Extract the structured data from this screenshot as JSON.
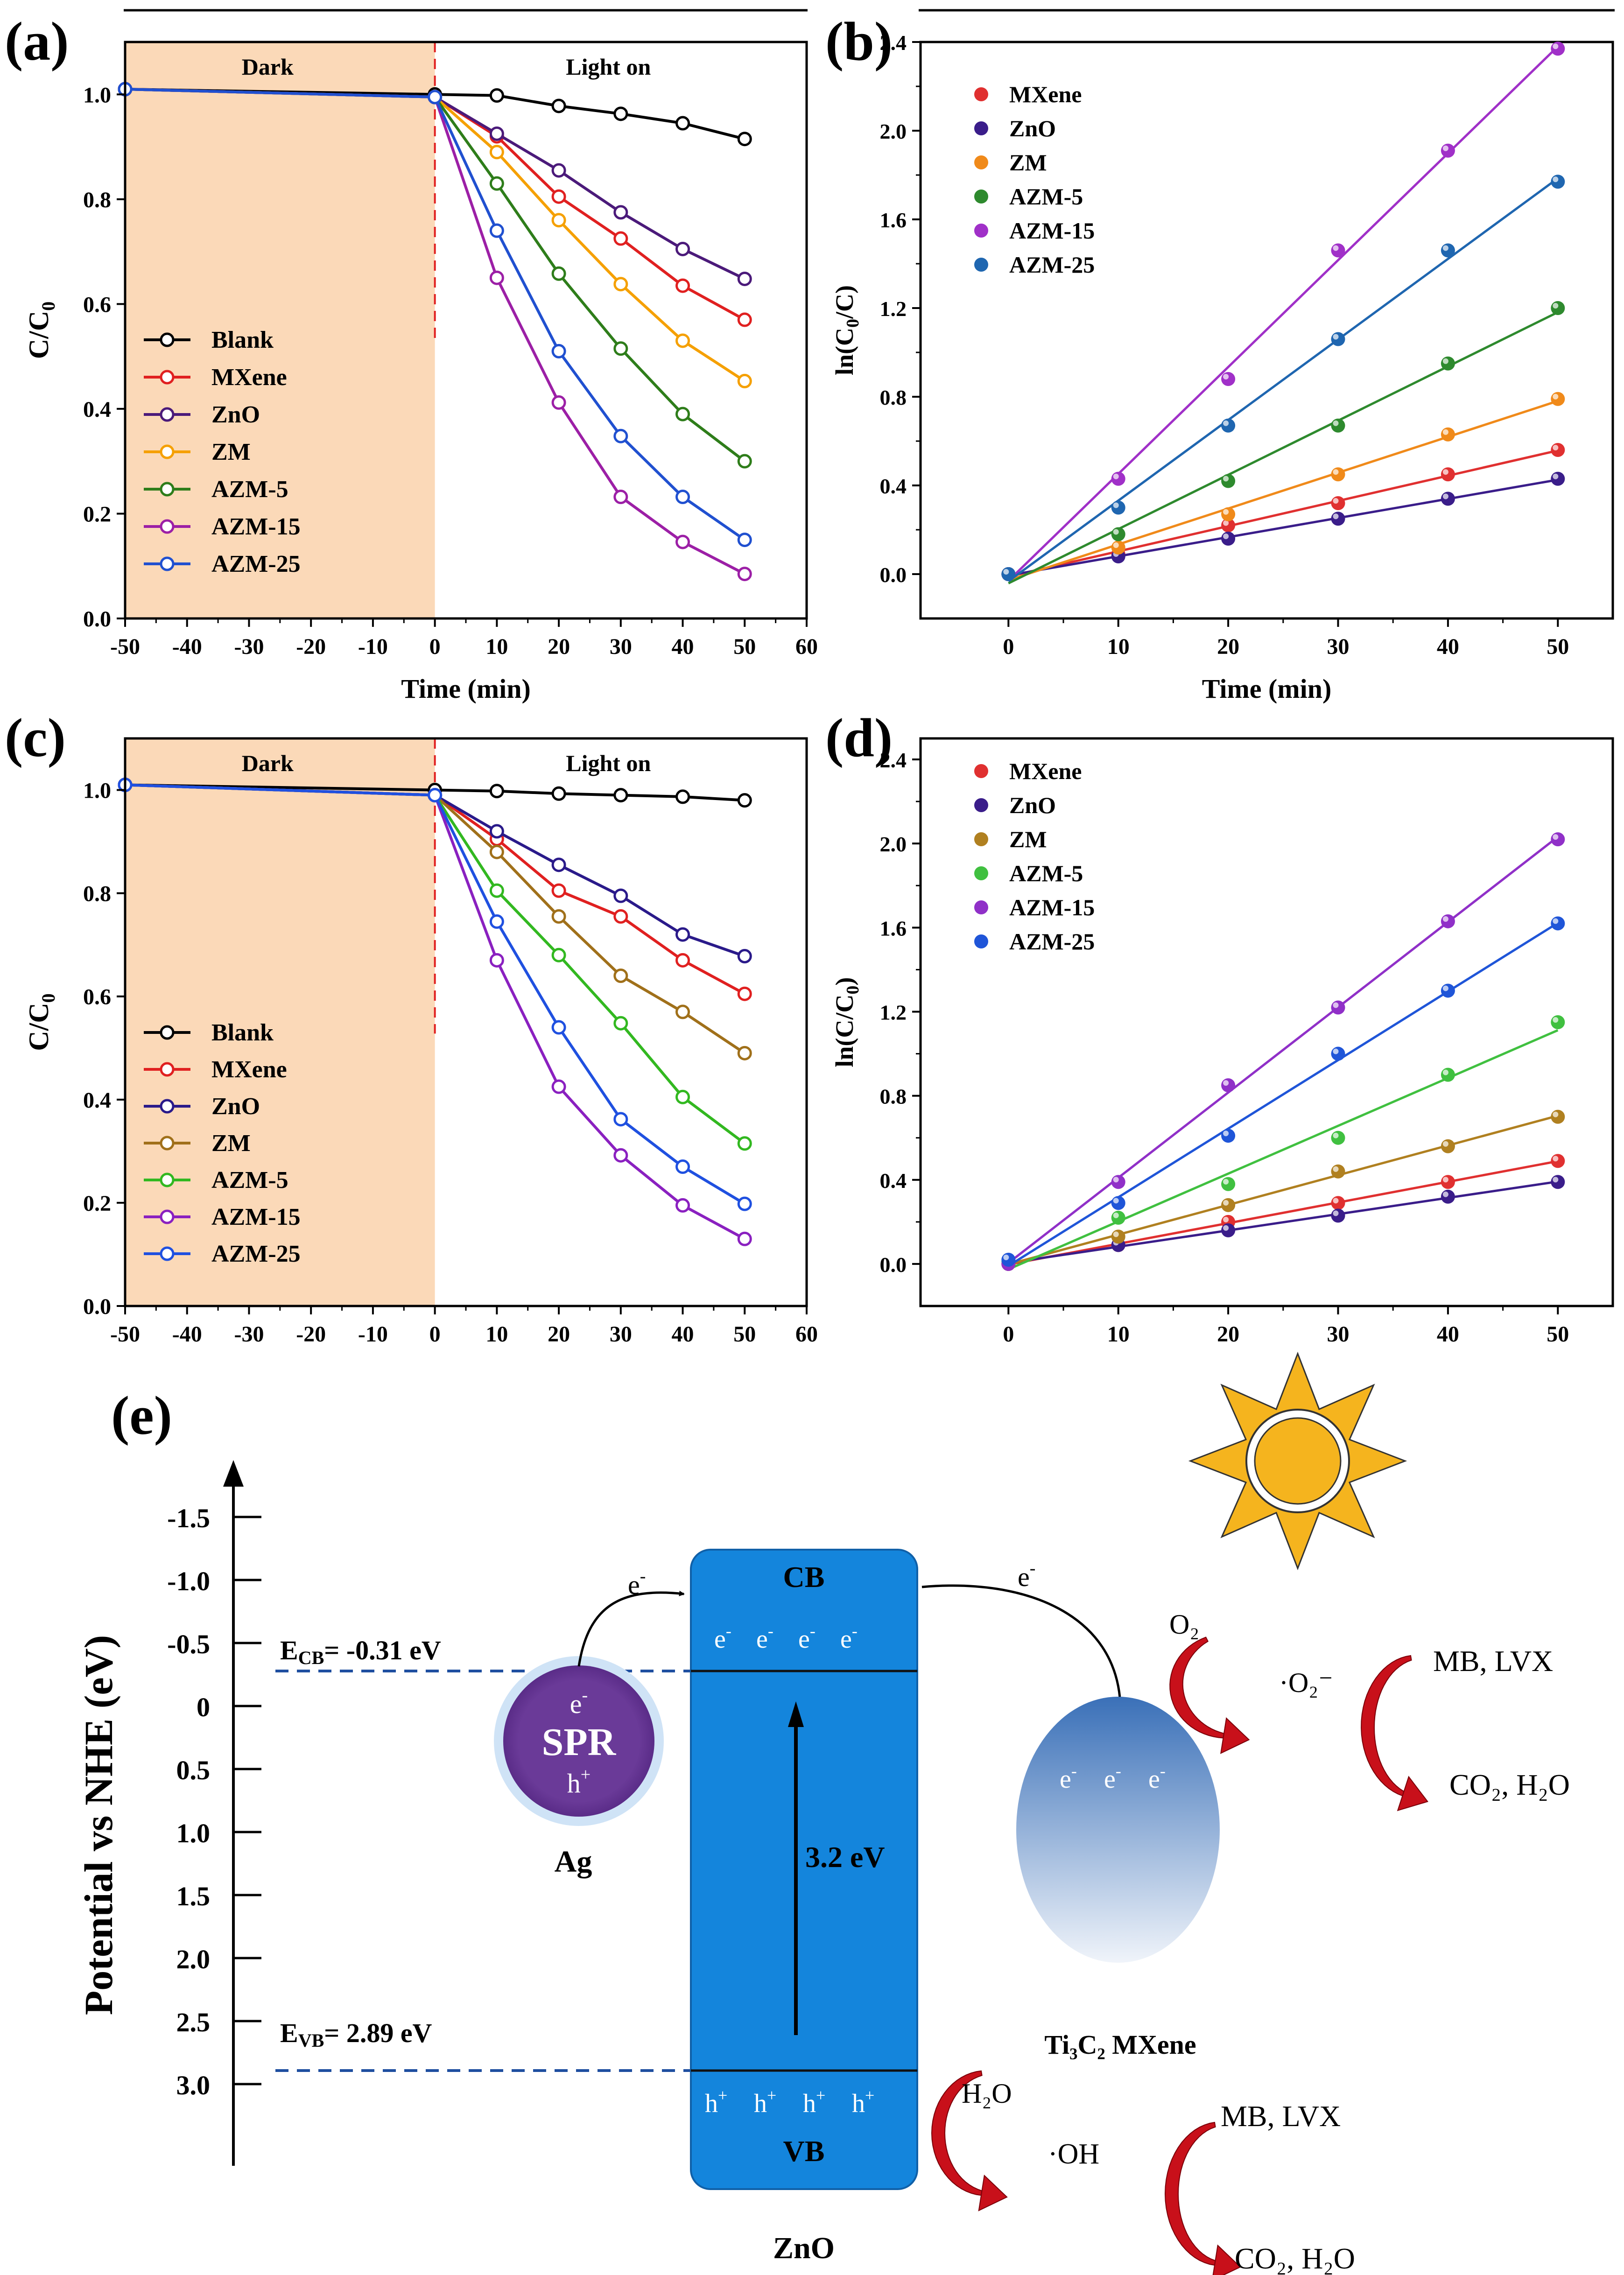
{
  "panels": {
    "a": {
      "label": "(a)",
      "chart_data": {
        "type": "line",
        "xlabel": "Time (min)",
        "ylabel": "C/C₀",
        "xlim": [
          -50,
          60
        ],
        "ylim": [
          0,
          1.1
        ],
        "xticks": [
          -50,
          -40,
          -30,
          -20,
          -10,
          0,
          10,
          20,
          30,
          40,
          50,
          60
        ],
        "yticks": [
          0.0,
          0.2,
          0.4,
          0.6,
          0.8,
          1.0
        ],
        "dark_region": [
          -50,
          0
        ],
        "dark_label": "Dark",
        "light_label": "Light on",
        "x": [
          -50,
          0,
          10,
          20,
          30,
          40,
          50
        ],
        "series": [
          {
            "name": "Blank",
            "color": "#000000",
            "values": [
              1.01,
              1.0,
              0.998,
              0.978,
              0.963,
              0.945,
              0.915
            ]
          },
          {
            "name": "MXene",
            "color": "#e02020",
            "values": [
              1.01,
              0.995,
              0.92,
              0.805,
              0.725,
              0.635,
              0.57
            ]
          },
          {
            "name": "ZnO",
            "color": "#4b1a7a",
            "values": [
              1.01,
              0.995,
              0.925,
              0.855,
              0.775,
              0.705,
              0.648
            ]
          },
          {
            "name": "ZM",
            "color": "#f5a000",
            "values": [
              1.01,
              0.995,
              0.89,
              0.76,
              0.638,
              0.53,
              0.453
            ]
          },
          {
            "name": "AZM-5",
            "color": "#2e7d1a",
            "values": [
              1.01,
              0.995,
              0.83,
              0.658,
              0.515,
              0.39,
              0.3
            ]
          },
          {
            "name": "AZM-15",
            "color": "#9c1fa6",
            "values": [
              1.01,
              0.995,
              0.65,
              0.412,
              0.232,
              0.146,
              0.085
            ]
          },
          {
            "name": "AZM-25",
            "color": "#2050d0",
            "values": [
              1.01,
              0.995,
              0.74,
              0.51,
              0.348,
              0.232,
              0.15
            ]
          }
        ]
      }
    },
    "b": {
      "label": "(b)",
      "chart_data": {
        "type": "scatter",
        "xlabel": "Time (min)",
        "ylabel": "ln(C₀/C)",
        "xlim": [
          -8,
          55
        ],
        "ylim": [
          -0.2,
          2.4
        ],
        "xticks": [
          0,
          10,
          20,
          30,
          40,
          50
        ],
        "yticks": [
          0.0,
          0.4,
          0.8,
          1.2,
          1.6,
          2.0,
          2.4
        ],
        "x": [
          0,
          10,
          20,
          30,
          40,
          50
        ],
        "series": [
          {
            "name": "MXene",
            "color": "#e03030",
            "values": [
              0,
              0.09,
              0.22,
              0.32,
              0.45,
              0.56
            ]
          },
          {
            "name": "ZnO",
            "color": "#3a1d8a",
            "values": [
              0,
              0.08,
              0.16,
              0.25,
              0.34,
              0.43
            ]
          },
          {
            "name": "ZM",
            "color": "#f08a1a",
            "values": [
              0,
              0.12,
              0.27,
              0.45,
              0.63,
              0.79
            ]
          },
          {
            "name": "AZM-5",
            "color": "#2e8a2e",
            "values": [
              0,
              0.18,
              0.42,
              0.67,
              0.95,
              1.2
            ]
          },
          {
            "name": "AZM-15",
            "color": "#a030c8",
            "values": [
              0,
              0.43,
              0.88,
              1.46,
              1.91,
              2.37
            ]
          },
          {
            "name": "AZM-25",
            "color": "#1f66b0",
            "values": [
              0,
              0.3,
              0.67,
              1.06,
              1.46,
              1.77
            ]
          }
        ]
      }
    },
    "c": {
      "label": "(c)",
      "chart_data": {
        "type": "line",
        "xlabel": "",
        "ylabel": "C/C₀",
        "xlim": [
          -50,
          60
        ],
        "ylim": [
          0,
          1.1
        ],
        "xticks": [
          -50,
          -40,
          -30,
          -20,
          -10,
          0,
          10,
          20,
          30,
          40,
          50,
          60
        ],
        "yticks": [
          0.0,
          0.2,
          0.4,
          0.6,
          0.8,
          1.0
        ],
        "dark_region": [
          -50,
          0
        ],
        "dark_label": "Dark",
        "light_label": "Light on",
        "x": [
          -50,
          0,
          10,
          20,
          30,
          40,
          50
        ],
        "series": [
          {
            "name": "Blank",
            "color": "#000000",
            "values": [
              1.01,
              1.0,
              0.998,
              0.993,
              0.99,
              0.987,
              0.98
            ]
          },
          {
            "name": "MXene",
            "color": "#e02020",
            "values": [
              1.01,
              0.99,
              0.905,
              0.805,
              0.755,
              0.67,
              0.605
            ]
          },
          {
            "name": "ZnO",
            "color": "#2a1a8a",
            "values": [
              1.01,
              0.99,
              0.92,
              0.855,
              0.795,
              0.72,
              0.678
            ]
          },
          {
            "name": "ZM",
            "color": "#a0701a",
            "values": [
              1.01,
              0.99,
              0.88,
              0.755,
              0.64,
              0.57,
              0.49
            ]
          },
          {
            "name": "AZM-5",
            "color": "#32b820",
            "values": [
              1.01,
              0.99,
              0.805,
              0.68,
              0.548,
              0.405,
              0.315
            ]
          },
          {
            "name": "AZM-15",
            "color": "#8a20c0",
            "values": [
              1.01,
              0.99,
              0.67,
              0.425,
              0.292,
              0.195,
              0.13
            ]
          },
          {
            "name": "AZM-25",
            "color": "#1f50e0",
            "values": [
              1.01,
              0.99,
              0.745,
              0.54,
              0.362,
              0.27,
              0.198
            ]
          }
        ]
      }
    },
    "d": {
      "label": "(d)",
      "chart_data": {
        "type": "scatter",
        "xlabel": "",
        "ylabel": "ln(C/C₀)",
        "xlim": [
          -8,
          55
        ],
        "ylim": [
          -0.2,
          2.5
        ],
        "xticks": [
          0,
          10,
          20,
          30,
          40,
          50
        ],
        "yticks": [
          0.0,
          0.4,
          0.8,
          1.2,
          1.6,
          2.0,
          2.4
        ],
        "x": [
          0,
          10,
          20,
          30,
          40,
          50
        ],
        "series": [
          {
            "name": "MXene",
            "color": "#e03030",
            "values": [
              0,
              0.09,
              0.2,
              0.29,
              0.39,
              0.49
            ]
          },
          {
            "name": "ZnO",
            "color": "#3a1d8a",
            "values": [
              0,
              0.09,
              0.16,
              0.23,
              0.32,
              0.39
            ]
          },
          {
            "name": "ZM",
            "color": "#b08020",
            "values": [
              0,
              0.13,
              0.28,
              0.44,
              0.56,
              0.7
            ]
          },
          {
            "name": "AZM-5",
            "color": "#40c040",
            "values": [
              0.01,
              0.22,
              0.38,
              0.6,
              0.9,
              1.15
            ]
          },
          {
            "name": "AZM-15",
            "color": "#9030c8",
            "values": [
              0,
              0.39,
              0.85,
              1.22,
              1.63,
              2.02
            ]
          },
          {
            "name": "AZM-25",
            "color": "#1f55d8",
            "values": [
              0.02,
              0.29,
              0.61,
              1.0,
              1.3,
              1.62
            ]
          }
        ]
      }
    }
  },
  "diagram": {
    "label": "(e)",
    "y_axis_label": "Potential vs NHE (eV)",
    "y_ticks": [
      "-1.5",
      "-1.0",
      "-0.5",
      "0",
      "0.5",
      "1.0",
      "1.5",
      "2.0",
      "2.5",
      "3.0"
    ],
    "ecb_prefix": "E",
    "ecb_sub": "CB",
    "ecb_value": "= -0.31 eV",
    "evb_prefix": "E",
    "evb_sub": "VB",
    "evb_value": "= 2.89 eV",
    "cb_label": "CB",
    "vb_label": "VB",
    "band_gap": "3.2 eV",
    "electron": "e",
    "hole": "h",
    "spr_label": "SPR",
    "ag_label": "Ag",
    "zno_label": "ZnO",
    "mxene_label": "Ti₃C₂ MXene",
    "o2": "O₂",
    "superoxide": "·O₂⁻",
    "h2o": "H₂O",
    "oh": "·OH",
    "pollutants_top": "MB,  LVX",
    "products_top": "CO₂,  H₂O",
    "pollutants_bottom": "MB, LVX",
    "products_bottom": "CO₂,  H₂O"
  }
}
